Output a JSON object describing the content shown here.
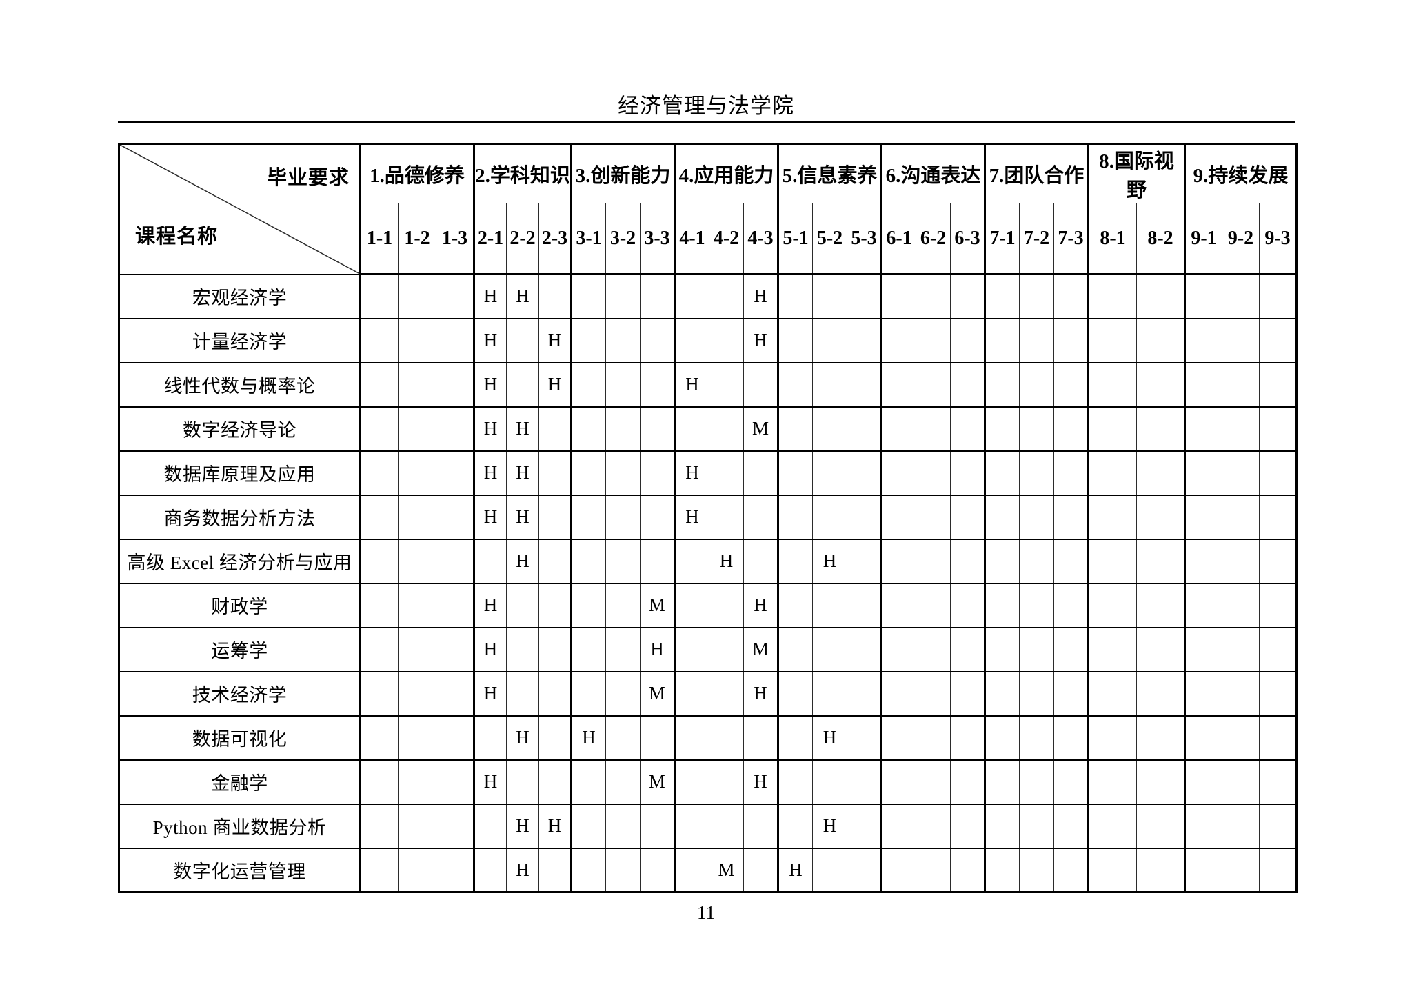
{
  "page": {
    "title": "经济管理与法学院",
    "page_number": "11"
  },
  "table": {
    "corner": {
      "top_label": "毕业要求",
      "bottom_label": "课程名称"
    },
    "groups": [
      {
        "label": "1.品德修养",
        "subs": [
          "1-1",
          "1-2",
          "1-3"
        ]
      },
      {
        "label": "2.学科知识",
        "subs": [
          "2-1",
          "2-2",
          "2-3"
        ]
      },
      {
        "label": "3.创新能力",
        "subs": [
          "3-1",
          "3-2",
          "3-3"
        ]
      },
      {
        "label": "4.应用能力",
        "subs": [
          "4-1",
          "4-2",
          "4-3"
        ]
      },
      {
        "label": "5.信息素养",
        "subs": [
          "5-1",
          "5-2",
          "5-3"
        ]
      },
      {
        "label": "6.沟通表达",
        "subs": [
          "6-1",
          "6-2",
          "6-3"
        ]
      },
      {
        "label": "7.团队合作",
        "subs": [
          "7-1",
          "7-2",
          "7-3"
        ]
      },
      {
        "label": "8.国际视野",
        "subs": [
          "8-1",
          "8-2"
        ]
      },
      {
        "label": "9.持续发展",
        "subs": [
          "9-1",
          "9-2",
          "9-3"
        ]
      }
    ],
    "columns": [
      "1-1",
      "1-2",
      "1-3",
      "2-1",
      "2-2",
      "2-3",
      "3-1",
      "3-2",
      "3-3",
      "4-1",
      "4-2",
      "4-3",
      "5-1",
      "5-2",
      "5-3",
      "6-1",
      "6-2",
      "6-3",
      "7-1",
      "7-2",
      "7-3",
      "8-1",
      "8-2",
      "9-1",
      "9-2",
      "9-3"
    ],
    "rows": [
      {
        "course": "宏观经济学",
        "marks": {
          "2-1": "H",
          "2-2": "H",
          "4-3": "H"
        }
      },
      {
        "course": "计量经济学",
        "marks": {
          "2-1": "H",
          "2-3": "H",
          "4-3": "H"
        }
      },
      {
        "course": "线性代数与概率论",
        "marks": {
          "2-1": "H",
          "2-3": "H",
          "4-1": "H"
        }
      },
      {
        "course": "数字经济导论",
        "marks": {
          "2-1": "H",
          "2-2": "H",
          "4-3": "M"
        }
      },
      {
        "course": "数据库原理及应用",
        "marks": {
          "2-1": "H",
          "2-2": "H",
          "4-1": "H"
        }
      },
      {
        "course": "商务数据分析方法",
        "marks": {
          "2-1": "H",
          "2-2": "H",
          "4-1": "H"
        }
      },
      {
        "course": "高级 Excel 经济分析与应用",
        "marks": {
          "2-2": "H",
          "4-2": "H",
          "5-2": "H"
        }
      },
      {
        "course": "财政学",
        "marks": {
          "2-1": "H",
          "3-3": "M",
          "4-3": "H"
        }
      },
      {
        "course": "运筹学",
        "marks": {
          "2-1": "H",
          "3-3": "H",
          "4-3": "M"
        }
      },
      {
        "course": "技术经济学",
        "marks": {
          "2-1": "H",
          "3-3": "M",
          "4-3": "H"
        }
      },
      {
        "course": "数据可视化",
        "marks": {
          "2-2": "H",
          "3-1": "H",
          "5-2": "H"
        }
      },
      {
        "course": "金融学",
        "marks": {
          "2-1": "H",
          "3-3": "M",
          "4-3": "H"
        }
      },
      {
        "course": "Python 商业数据分析",
        "marks": {
          "2-2": "H",
          "2-3": "H",
          "5-2": "H"
        }
      },
      {
        "course": "数字化运营管理",
        "marks": {
          "2-2": "H",
          "4-2": "M",
          "5-1": "H"
        }
      }
    ]
  }
}
